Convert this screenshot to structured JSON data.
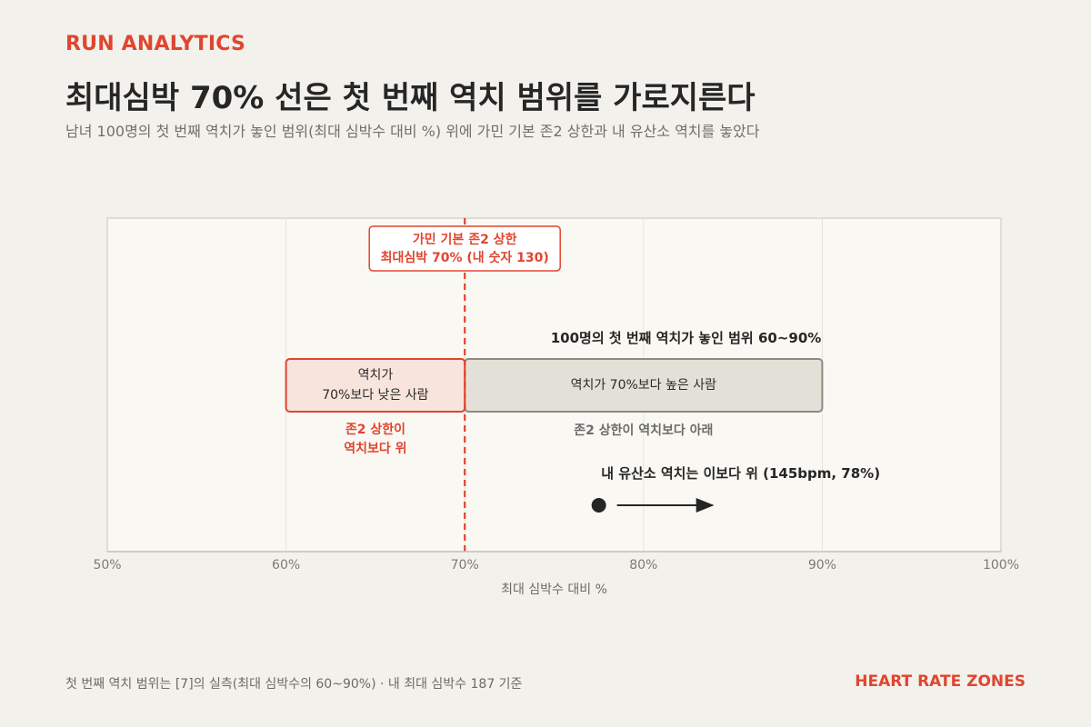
{
  "header": {
    "kicker": "RUN ANALYTICS",
    "title": "최대심박 70% 선은 첫 번째 역치 범위를 가로지른다",
    "subtitle": "남녀 100명의 첫 번째 역치가 놓인 범위(최대 심박수 대비 %) 위에 가민 기본 존2 상한과 내 유산소 역치를 놓았다"
  },
  "footer": {
    "note": "첫 번째 역치 범위는 [7]의 실측(최대 심박수의 60~90%) · 내 최대 심박수 187 기준",
    "brand": "HEART RATE ZONES"
  },
  "colors": {
    "accent": "#e0452f",
    "below_fill": "#f7e4dc",
    "above_fill": "#e3e0d7",
    "above_stroke": "#8c8a82",
    "plot_bg": "#faf8f3",
    "marker": "#262626"
  },
  "chart_data": {
    "type": "range",
    "xlabel": "최대 심박수 대비 %",
    "xlim": [
      50,
      100
    ],
    "x_ticks": [
      50,
      60,
      70,
      80,
      90,
      100
    ],
    "x_tick_labels": [
      "50%",
      "60%",
      "70%",
      "80%",
      "90%",
      "100%"
    ],
    "grid": true,
    "threshold_range": {
      "min": 60,
      "max": 90,
      "label": "100명의 첫 번째 역치가 놓인 범위 60~90%"
    },
    "segments": [
      {
        "from": 60,
        "to": 70,
        "label_lines": [
          "역치가",
          "70%보다 낮은 사람"
        ],
        "note_lines": [
          "존2 상한이",
          "역치보다 위"
        ]
      },
      {
        "from": 70,
        "to": 90,
        "label_lines": [
          "역치가 70%보다 높은 사람"
        ],
        "note_lines": [
          "존2 상한이 역치보다 아래"
        ]
      }
    ],
    "reference_line": {
      "x": 70,
      "label_lines": [
        "가민 기본 존2 상한",
        "최대심박 70% (내 숫자 130)"
      ]
    },
    "my_threshold": {
      "x": 77.5,
      "bpm": 145,
      "label": "내 유산소 역치는 이보다 위 (145bpm, 78%)"
    }
  }
}
